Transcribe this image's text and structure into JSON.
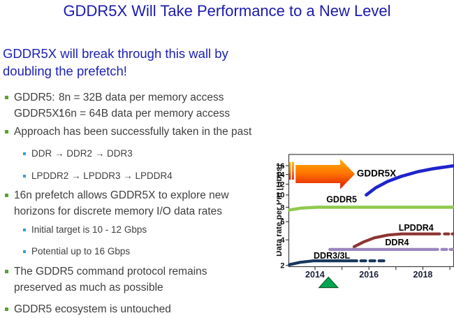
{
  "slide": {
    "title": "GDDR5X Will Take Performance to a New Level",
    "subtitle_lines": [
      "GDDR5X will break through this wall by",
      "doubling the prefetch!"
    ],
    "bullets": [
      {
        "level": 1,
        "rows": [
          {
            "label": "GDDR5:",
            "text": "8n = 32B data per memory access"
          },
          {
            "label": "GDDR5X:",
            "text": "16n = 64B data per memory access"
          }
        ]
      },
      {
        "level": 1,
        "lines": [
          "Approach has been successfully taken in the past"
        ]
      },
      {
        "level": 2,
        "lines": [
          "DDR → DDR2 → DDR3"
        ]
      },
      {
        "level": 2,
        "lines": [
          "LPDDR2 → LPDDR3 → LPDDR4"
        ]
      },
      {
        "level": 1,
        "lines": [
          "16n prefetch allows GDDR5X to explore new",
          "horizons for discrete memory I/O data rates"
        ]
      },
      {
        "level": 2,
        "lines": [
          "Initial target is 10 - 12 Gbps"
        ]
      },
      {
        "level": 2,
        "lines": [
          "Potential up to 16 Gbps"
        ]
      },
      {
        "level": 1,
        "lines": [
          "The GDDR5 command protocol remains",
          "preserved as much as possible"
        ]
      },
      {
        "level": 1,
        "lines": [
          "GDDR5 ecosystem is untouched"
        ]
      }
    ],
    "palette": {
      "title_blue": "#1a1ab2",
      "subtitle_blue": "#1d22b8",
      "body_text": "#3f3f3f",
      "bullet_level1": "#5aa231",
      "bullet_level2": "#2f9fd8"
    }
  },
  "chart_data": {
    "type": "line",
    "title": "",
    "xlabel": "",
    "ylabel": "Data rate per Pin [Gbps]",
    "xlim": [
      2013.03,
      2019.14
    ],
    "ylim": [
      1.93,
      18.8
    ],
    "y_scale": {
      "type": "power",
      "exponent": 0.35
    },
    "grid": false,
    "legend_position": "inline-labels",
    "y_ticks": [
      2,
      4,
      6,
      8,
      10,
      12,
      14,
      16
    ],
    "x_ticks": [
      {
        "year": 2014,
        "label": "2014"
      },
      {
        "year": 2015,
        "label": ""
      },
      {
        "year": 2016,
        "label": "2016"
      },
      {
        "year": 2017,
        "label": ""
      },
      {
        "year": 2018,
        "label": "2018"
      },
      {
        "year": 2019,
        "label": ""
      }
    ],
    "series": [
      {
        "name": "GDDR5",
        "color": "#8fc94e",
        "width": 4.4,
        "segments": [
          {
            "dash": null,
            "points": [
              [
                2013.05,
                7.6
              ],
              [
                2013.5,
                7.88
              ],
              [
                2014.1,
                8.0
              ],
              [
                2019.12,
                8.0
              ]
            ]
          }
        ],
        "label": {
          "text": "GDDR5",
          "x": 2014.42,
          "y": 8.75,
          "size": 12.5
        }
      },
      {
        "name": "GDDR5X",
        "color": "#1f24cc",
        "width": 4.6,
        "segments": [
          {
            "dash": null,
            "points": [
              [
                2015.9,
                10.0
              ],
              [
                2016.25,
                11.3
              ],
              [
                2016.7,
                12.55
              ],
              [
                2017.2,
                13.6
              ],
              [
                2017.8,
                14.6
              ],
              [
                2018.4,
                15.3
              ],
              [
                2019.12,
                15.95
              ]
            ]
          }
        ],
        "label": {
          "text": "GDDR5X",
          "x": 2015.55,
          "y": 13.6,
          "size": 13.5
        }
      },
      {
        "name": "LPDDR4",
        "color": "#8d3432",
        "width": 4.2,
        "segments": [
          {
            "dash": null,
            "points": [
              [
                2015.45,
                3.38
              ],
              [
                2015.8,
                3.8
              ],
              [
                2016.2,
                4.2
              ],
              [
                2016.7,
                4.48
              ],
              [
                2017.2,
                4.6
              ],
              [
                2018.62,
                4.6
              ]
            ]
          },
          {
            "dash": [
              6,
              5
            ],
            "points": [
              [
                2018.8,
                4.6
              ],
              [
                2019.12,
                4.6
              ]
            ]
          }
        ],
        "label": {
          "text": "LPDDR4",
          "x": 2017.1,
          "y": 4.95,
          "size": 12.5
        }
      },
      {
        "name": "DDR4",
        "color": "#9a86c0",
        "width": 4.2,
        "segments": [
          {
            "dash": null,
            "points": [
              [
                2014.55,
                3.15
              ],
              [
                2018.55,
                3.15
              ]
            ]
          },
          {
            "dash": [
              7,
              5
            ],
            "points": [
              [
                2018.7,
                3.15
              ],
              [
                2019.12,
                3.15
              ]
            ]
          }
        ],
        "label": {
          "text": "DDR4",
          "x": 2016.6,
          "y": 3.5,
          "size": 12.5
        }
      },
      {
        "name": "DDR3/3L",
        "color": "#17365d",
        "width": 4.2,
        "segments": [
          {
            "dash": null,
            "points": [
              [
                2013.05,
                2.05
              ],
              [
                2013.45,
                2.2
              ],
              [
                2013.95,
                2.3
              ],
              [
                2015.55,
                2.3
              ]
            ]
          },
          {
            "dash": [
              7,
              6
            ],
            "points": [
              [
                2015.7,
                2.3
              ],
              [
                2016.62,
                2.3
              ]
            ]
          }
        ],
        "label": {
          "text": "DDR3/3L",
          "x": 2013.95,
          "y": 2.44,
          "size": 12.5
        }
      }
    ],
    "annotations": {
      "breakthrough_arrow": {
        "x_start": 2013.28,
        "x_end": 2015.48,
        "value": 14.1,
        "color_top": "#ffae00",
        "color_mid": "#ff7400",
        "color_bottom": "#de1700"
      },
      "wall_marks": {
        "years": [
          2013.07,
          2013.185
        ],
        "value_range": [
          12.9,
          16.9
        ]
      },
      "timeline_marker": {
        "year": 2014.5,
        "shape": "triangle-up",
        "color": "#00a651",
        "outline": "#0e5a2c"
      }
    },
    "tick_label_colors": {
      "x": "#1a2138",
      "y": "#131313"
    }
  }
}
